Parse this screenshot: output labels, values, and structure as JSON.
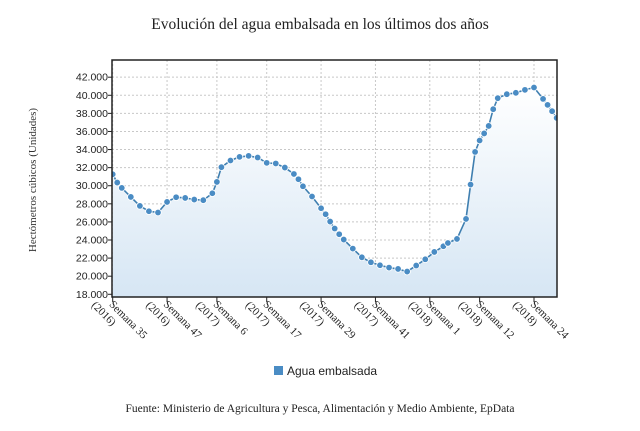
{
  "chart_data": {
    "type": "area",
    "title": "Evolución del agua embalsada en los últimos dos años",
    "ylabel": "Hectómetros cúbicos (Unidades)",
    "xlabel": "",
    "ylim": [
      17700,
      43900
    ],
    "yticks": [
      18000,
      20000,
      22000,
      24000,
      26000,
      28000,
      30000,
      32000,
      34000,
      36000,
      38000,
      40000,
      42000
    ],
    "ytick_labels": [
      "18.000",
      "20.000",
      "22.000",
      "24.000",
      "26.000",
      "28.000",
      "30.000",
      "32.000",
      "34.000",
      "36.000",
      "38.000",
      "40.000",
      "42.000"
    ],
    "xticks": [
      {
        "week": 35,
        "year": 2016,
        "line1": "Semana 35",
        "line2": "(2016)"
      },
      {
        "week": 47,
        "year": 2016,
        "line1": "Semana 47",
        "line2": "(2016)"
      },
      {
        "week": 6,
        "year": 2017,
        "line1": "Semana 6",
        "line2": "(2017)"
      },
      {
        "week": 17,
        "year": 2017,
        "line1": "Semana 17",
        "line2": "(2017)"
      },
      {
        "week": 29,
        "year": 2017,
        "line1": "Semana 29",
        "line2": "(2017)"
      },
      {
        "week": 41,
        "year": 2017,
        "line1": "Semana 41",
        "line2": "(2017)"
      },
      {
        "week": 1,
        "year": 2018,
        "line1": "Semana 1",
        "line2": "(2018)"
      },
      {
        "week": 12,
        "year": 2018,
        "line1": "Semana 12",
        "line2": "(2018)"
      },
      {
        "week": 24,
        "year": 2018,
        "line1": "Semana 24",
        "line2": "(2018)"
      }
    ],
    "grid": true,
    "legend_position": "bottom",
    "series": [
      {
        "name": "Agua embalsada",
        "color": "#4a8cc4",
        "points": [
          {
            "week": 35,
            "year": 2016,
            "value": 31270
          },
          {
            "week": 36,
            "year": 2016,
            "value": 30350
          },
          {
            "week": 37,
            "year": 2016,
            "value": 29760
          },
          {
            "week": 39,
            "year": 2016,
            "value": 28760
          },
          {
            "week": 41,
            "year": 2016,
            "value": 27770
          },
          {
            "week": 43,
            "year": 2016,
            "value": 27180
          },
          {
            "week": 45,
            "year": 2016,
            "value": 27040
          },
          {
            "week": 47,
            "year": 2016,
            "value": 28210
          },
          {
            "week": 49,
            "year": 2016,
            "value": 28730
          },
          {
            "week": 51,
            "year": 2016,
            "value": 28650
          },
          {
            "week": 1,
            "year": 2017,
            "value": 28470
          },
          {
            "week": 3,
            "year": 2017,
            "value": 28400
          },
          {
            "week": 5,
            "year": 2017,
            "value": 29170
          },
          {
            "week": 6,
            "year": 2017,
            "value": 30420
          },
          {
            "week": 7,
            "year": 2017,
            "value": 32050
          },
          {
            "week": 9,
            "year": 2017,
            "value": 32790
          },
          {
            "week": 11,
            "year": 2017,
            "value": 33190
          },
          {
            "week": 13,
            "year": 2017,
            "value": 33300
          },
          {
            "week": 15,
            "year": 2017,
            "value": 33120
          },
          {
            "week": 17,
            "year": 2017,
            "value": 32530
          },
          {
            "week": 19,
            "year": 2017,
            "value": 32460
          },
          {
            "week": 21,
            "year": 2017,
            "value": 32010
          },
          {
            "week": 23,
            "year": 2017,
            "value": 31300
          },
          {
            "week": 24,
            "year": 2017,
            "value": 30720
          },
          {
            "week": 25,
            "year": 2017,
            "value": 29940
          },
          {
            "week": 27,
            "year": 2017,
            "value": 28810
          },
          {
            "week": 29,
            "year": 2017,
            "value": 27510
          },
          {
            "week": 30,
            "year": 2017,
            "value": 26850
          },
          {
            "week": 31,
            "year": 2017,
            "value": 26040
          },
          {
            "week": 32,
            "year": 2017,
            "value": 25270
          },
          {
            "week": 33,
            "year": 2017,
            "value": 24640
          },
          {
            "week": 34,
            "year": 2017,
            "value": 24050
          },
          {
            "week": 36,
            "year": 2017,
            "value": 23050
          },
          {
            "week": 38,
            "year": 2017,
            "value": 22090
          },
          {
            "week": 40,
            "year": 2017,
            "value": 21540
          },
          {
            "week": 42,
            "year": 2017,
            "value": 21210
          },
          {
            "week": 44,
            "year": 2017,
            "value": 20950
          },
          {
            "week": 46,
            "year": 2017,
            "value": 20800
          },
          {
            "week": 48,
            "year": 2017,
            "value": 20510
          },
          {
            "week": 50,
            "year": 2017,
            "value": 21180
          },
          {
            "week": 52,
            "year": 2017,
            "value": 21870
          },
          {
            "week": 2,
            "year": 2018,
            "value": 22680
          },
          {
            "week": 4,
            "year": 2018,
            "value": 23310
          },
          {
            "week": 5,
            "year": 2018,
            "value": 23670
          },
          {
            "week": 7,
            "year": 2018,
            "value": 24120
          },
          {
            "week": 9,
            "year": 2018,
            "value": 26330
          },
          {
            "week": 10,
            "year": 2018,
            "value": 30130
          },
          {
            "week": 11,
            "year": 2018,
            "value": 33740
          },
          {
            "week": 12,
            "year": 2018,
            "value": 35000
          },
          {
            "week": 13,
            "year": 2018,
            "value": 35780
          },
          {
            "week": 14,
            "year": 2018,
            "value": 36610
          },
          {
            "week": 15,
            "year": 2018,
            "value": 38460
          },
          {
            "week": 16,
            "year": 2018,
            "value": 39680
          },
          {
            "week": 18,
            "year": 2018,
            "value": 40120
          },
          {
            "week": 20,
            "year": 2018,
            "value": 40270
          },
          {
            "week": 22,
            "year": 2018,
            "value": 40600
          },
          {
            "week": 24,
            "year": 2018,
            "value": 40860
          },
          {
            "week": 26,
            "year": 2018,
            "value": 39600
          },
          {
            "week": 27,
            "year": 2018,
            "value": 38940
          },
          {
            "week": 28,
            "year": 2018,
            "value": 38240
          },
          {
            "week": 29,
            "year": 2018,
            "value": 37500
          }
        ]
      }
    ],
    "source": "Fuente: Ministerio de Agricultura y Pesca, Alimentación y Medio Ambiente, EpData"
  }
}
